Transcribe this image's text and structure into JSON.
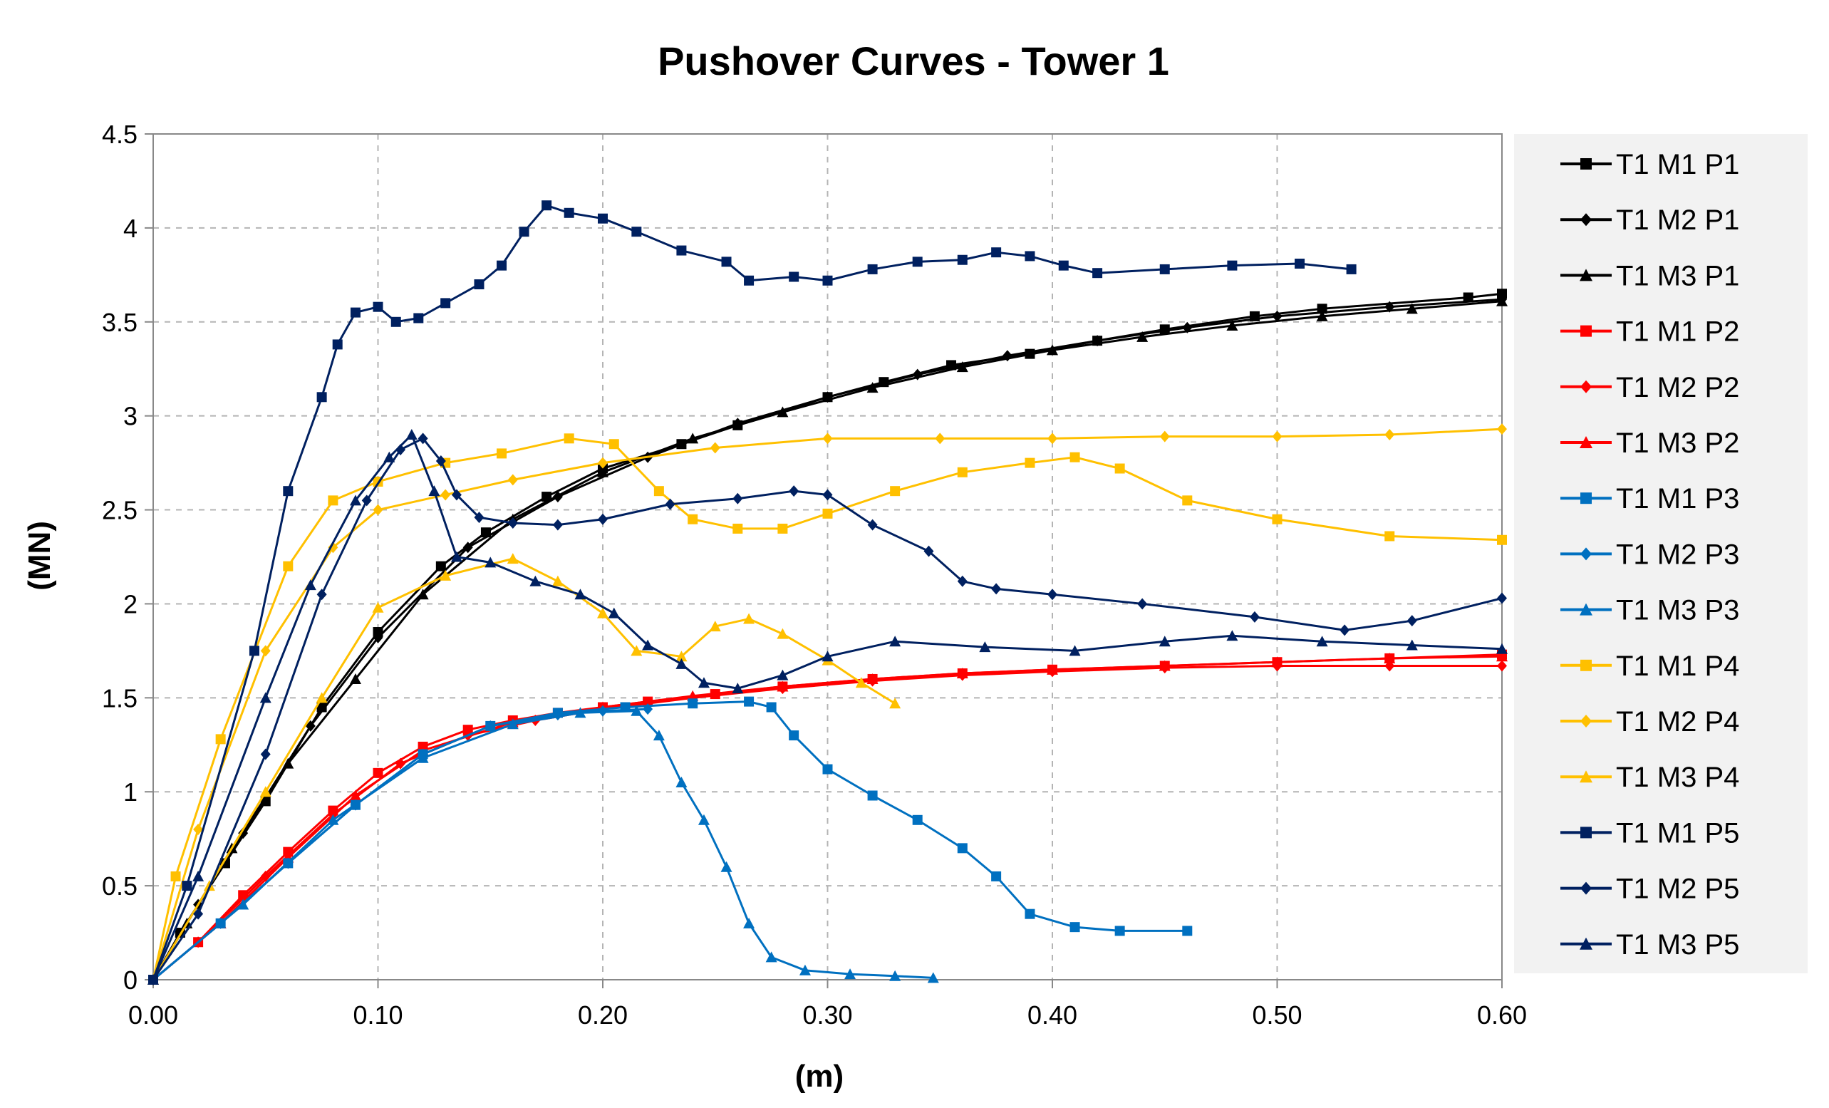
{
  "chart_data": {
    "type": "line",
    "title": "Pushover Curves - Tower 1",
    "xlabel": "(m)",
    "ylabel": "(MN)",
    "xlim": [
      0,
      0.6
    ],
    "ylim": [
      0,
      4.5
    ],
    "grid": true,
    "legend_position": "right",
    "x_ticks": [
      "0.00",
      "0.10",
      "0.20",
      "0.30",
      "0.40",
      "0.50",
      "0.60"
    ],
    "y_ticks": [
      "0",
      "0.5",
      "1",
      "1.5",
      "2",
      "2.5",
      "3",
      "3.5",
      "4",
      "4.5"
    ],
    "series": [
      {
        "name": "T1 M1 P1",
        "color": "#000000",
        "marker": "square",
        "x": [
          0,
          0.012,
          0.032,
          0.05,
          0.075,
          0.1,
          0.128,
          0.148,
          0.175,
          0.2,
          0.235,
          0.26,
          0.3,
          0.325,
          0.355,
          0.39,
          0.42,
          0.45,
          0.49,
          0.52,
          0.585,
          0.6
        ],
        "y": [
          0,
          0.25,
          0.62,
          0.95,
          1.45,
          1.85,
          2.2,
          2.38,
          2.57,
          2.72,
          2.85,
          2.95,
          3.1,
          3.18,
          3.27,
          3.33,
          3.4,
          3.46,
          3.53,
          3.57,
          3.63,
          3.65
        ]
      },
      {
        "name": "T1 M2 P1",
        "color": "#000000",
        "marker": "diamond",
        "x": [
          0,
          0.02,
          0.04,
          0.07,
          0.1,
          0.14,
          0.18,
          0.22,
          0.26,
          0.3,
          0.34,
          0.38,
          0.42,
          0.46,
          0.5,
          0.55,
          0.6
        ],
        "y": [
          0,
          0.4,
          0.78,
          1.35,
          1.82,
          2.3,
          2.57,
          2.78,
          2.96,
          3.1,
          3.22,
          3.32,
          3.4,
          3.47,
          3.53,
          3.58,
          3.62
        ]
      },
      {
        "name": "T1 M3 P1",
        "color": "#000000",
        "marker": "triangle",
        "x": [
          0,
          0.015,
          0.035,
          0.06,
          0.09,
          0.12,
          0.16,
          0.2,
          0.24,
          0.28,
          0.32,
          0.36,
          0.4,
          0.44,
          0.48,
          0.52,
          0.56,
          0.6
        ],
        "y": [
          0,
          0.3,
          0.7,
          1.15,
          1.6,
          2.05,
          2.45,
          2.7,
          2.88,
          3.02,
          3.15,
          3.26,
          3.35,
          3.42,
          3.48,
          3.53,
          3.57,
          3.61
        ]
      },
      {
        "name": "T1 M1 P2",
        "color": "#ff0000",
        "marker": "square",
        "x": [
          0,
          0.02,
          0.04,
          0.06,
          0.08,
          0.1,
          0.12,
          0.14,
          0.16,
          0.18,
          0.2,
          0.22,
          0.25,
          0.28,
          0.32,
          0.36,
          0.4,
          0.45,
          0.5,
          0.55,
          0.6
        ],
        "y": [
          0,
          0.2,
          0.45,
          0.68,
          0.9,
          1.1,
          1.24,
          1.33,
          1.38,
          1.42,
          1.45,
          1.48,
          1.52,
          1.56,
          1.6,
          1.63,
          1.65,
          1.67,
          1.69,
          1.71,
          1.73
        ]
      },
      {
        "name": "T1 M2 P2",
        "color": "#ff0000",
        "marker": "diamond",
        "x": [
          0,
          0.02,
          0.05,
          0.08,
          0.11,
          0.14,
          0.17,
          0.2,
          0.24,
          0.28,
          0.32,
          0.36,
          0.4,
          0.45,
          0.5,
          0.55,
          0.6
        ],
        "y": [
          0,
          0.2,
          0.55,
          0.88,
          1.15,
          1.3,
          1.38,
          1.44,
          1.5,
          1.55,
          1.59,
          1.62,
          1.64,
          1.66,
          1.67,
          1.67,
          1.67
        ]
      },
      {
        "name": "T1 M3 P2",
        "color": "#ff0000",
        "marker": "triangle",
        "x": [
          0,
          0.03,
          0.06,
          0.09,
          0.12,
          0.16,
          0.2,
          0.24,
          0.28,
          0.32,
          0.36,
          0.4,
          0.45,
          0.5,
          0.55,
          0.6
        ],
        "y": [
          0,
          0.3,
          0.65,
          0.98,
          1.22,
          1.37,
          1.45,
          1.51,
          1.56,
          1.6,
          1.63,
          1.65,
          1.67,
          1.69,
          1.71,
          1.72
        ]
      },
      {
        "name": "T1 M1 P3",
        "color": "#0070c0",
        "marker": "square",
        "x": [
          0,
          0.03,
          0.06,
          0.09,
          0.12,
          0.15,
          0.18,
          0.21,
          0.24,
          0.265,
          0.275,
          0.285,
          0.3,
          0.32,
          0.34,
          0.36,
          0.375,
          0.39,
          0.41,
          0.43,
          0.46
        ],
        "y": [
          0,
          0.3,
          0.62,
          0.93,
          1.2,
          1.35,
          1.42,
          1.45,
          1.47,
          1.48,
          1.45,
          1.3,
          1.12,
          0.98,
          0.85,
          0.7,
          0.55,
          0.35,
          0.28,
          0.26,
          0.26
        ]
      },
      {
        "name": "T1 M2 P3",
        "color": "#0070c0",
        "marker": "diamond",
        "x": [
          0,
          0.03,
          0.06,
          0.09,
          0.12,
          0.15,
          0.18,
          0.2,
          0.22
        ],
        "y": [
          0,
          0.3,
          0.62,
          0.93,
          1.2,
          1.35,
          1.41,
          1.43,
          1.44
        ]
      },
      {
        "name": "T1 M3 P3",
        "color": "#0070c0",
        "marker": "triangle",
        "x": [
          0,
          0.04,
          0.08,
          0.12,
          0.16,
          0.19,
          0.215,
          0.225,
          0.235,
          0.245,
          0.255,
          0.265,
          0.275,
          0.29,
          0.31,
          0.33,
          0.347
        ],
        "y": [
          0,
          0.4,
          0.85,
          1.18,
          1.36,
          1.42,
          1.43,
          1.3,
          1.05,
          0.85,
          0.6,
          0.3,
          0.12,
          0.05,
          0.03,
          0.02,
          0.01
        ]
      },
      {
        "name": "T1 M1 P4",
        "color": "#ffc000",
        "marker": "square",
        "x": [
          0,
          0.01,
          0.03,
          0.06,
          0.08,
          0.1,
          0.13,
          0.155,
          0.185,
          0.205,
          0.225,
          0.24,
          0.26,
          0.28,
          0.3,
          0.33,
          0.36,
          0.39,
          0.41,
          0.43,
          0.46,
          0.5,
          0.55,
          0.6
        ],
        "y": [
          0,
          0.55,
          1.28,
          2.2,
          2.55,
          2.65,
          2.75,
          2.8,
          2.88,
          2.85,
          2.6,
          2.45,
          2.4,
          2.4,
          2.48,
          2.6,
          2.7,
          2.75,
          2.78,
          2.72,
          2.55,
          2.45,
          2.36,
          2.34
        ]
      },
      {
        "name": "T1 M2 P4",
        "color": "#ffc000",
        "marker": "diamond",
        "x": [
          0,
          0.02,
          0.05,
          0.08,
          0.1,
          0.13,
          0.16,
          0.2,
          0.25,
          0.3,
          0.35,
          0.4,
          0.45,
          0.5,
          0.55,
          0.6
        ],
        "y": [
          0,
          0.8,
          1.75,
          2.3,
          2.5,
          2.58,
          2.66,
          2.75,
          2.83,
          2.88,
          2.88,
          2.88,
          2.89,
          2.89,
          2.9,
          2.93
        ]
      },
      {
        "name": "T1 M3 P4",
        "color": "#ffc000",
        "marker": "triangle",
        "x": [
          0,
          0.025,
          0.05,
          0.075,
          0.1,
          0.13,
          0.16,
          0.18,
          0.2,
          0.215,
          0.235,
          0.25,
          0.265,
          0.28,
          0.3,
          0.315,
          0.33
        ],
        "y": [
          0,
          0.5,
          1.0,
          1.5,
          1.98,
          2.15,
          2.24,
          2.12,
          1.95,
          1.75,
          1.72,
          1.88,
          1.92,
          1.84,
          1.7,
          1.58,
          1.47
        ]
      },
      {
        "name": "T1 M1 P5",
        "color": "#002060",
        "marker": "square",
        "x": [
          0,
          0.015,
          0.045,
          0.06,
          0.075,
          0.082,
          0.09,
          0.1,
          0.108,
          0.118,
          0.13,
          0.145,
          0.155,
          0.165,
          0.175,
          0.185,
          0.2,
          0.215,
          0.235,
          0.255,
          0.265,
          0.285,
          0.3,
          0.32,
          0.34,
          0.36,
          0.375,
          0.39,
          0.405,
          0.42,
          0.45,
          0.48,
          0.51,
          0.533
        ],
        "y": [
          0,
          0.5,
          1.75,
          2.6,
          3.1,
          3.38,
          3.55,
          3.58,
          3.5,
          3.52,
          3.6,
          3.7,
          3.8,
          3.98,
          4.12,
          4.08,
          4.05,
          3.98,
          3.88,
          3.82,
          3.72,
          3.74,
          3.72,
          3.78,
          3.82,
          3.83,
          3.87,
          3.85,
          3.8,
          3.76,
          3.78,
          3.8,
          3.81,
          3.78
        ]
      },
      {
        "name": "T1 M2 P5",
        "color": "#002060",
        "marker": "diamond",
        "x": [
          0,
          0.02,
          0.05,
          0.075,
          0.095,
          0.11,
          0.12,
          0.128,
          0.135,
          0.145,
          0.16,
          0.18,
          0.2,
          0.23,
          0.26,
          0.285,
          0.3,
          0.32,
          0.345,
          0.36,
          0.375,
          0.4,
          0.44,
          0.49,
          0.53,
          0.56,
          0.6
        ],
        "y": [
          0,
          0.35,
          1.2,
          2.05,
          2.55,
          2.82,
          2.88,
          2.76,
          2.58,
          2.46,
          2.43,
          2.42,
          2.45,
          2.53,
          2.56,
          2.6,
          2.58,
          2.42,
          2.28,
          2.12,
          2.08,
          2.05,
          2.0,
          1.93,
          1.86,
          1.91,
          2.03
        ]
      },
      {
        "name": "T1 M3 P5",
        "color": "#002060",
        "marker": "triangle",
        "x": [
          0,
          0.02,
          0.05,
          0.07,
          0.09,
          0.105,
          0.115,
          0.125,
          0.135,
          0.15,
          0.17,
          0.19,
          0.205,
          0.22,
          0.235,
          0.245,
          0.26,
          0.28,
          0.3,
          0.33,
          0.37,
          0.41,
          0.45,
          0.48,
          0.52,
          0.56,
          0.6
        ],
        "y": [
          0,
          0.55,
          1.5,
          2.1,
          2.55,
          2.78,
          2.9,
          2.6,
          2.25,
          2.22,
          2.12,
          2.05,
          1.95,
          1.78,
          1.68,
          1.58,
          1.55,
          1.62,
          1.72,
          1.8,
          1.77,
          1.75,
          1.8,
          1.83,
          1.8,
          1.78,
          1.76
        ]
      }
    ]
  }
}
